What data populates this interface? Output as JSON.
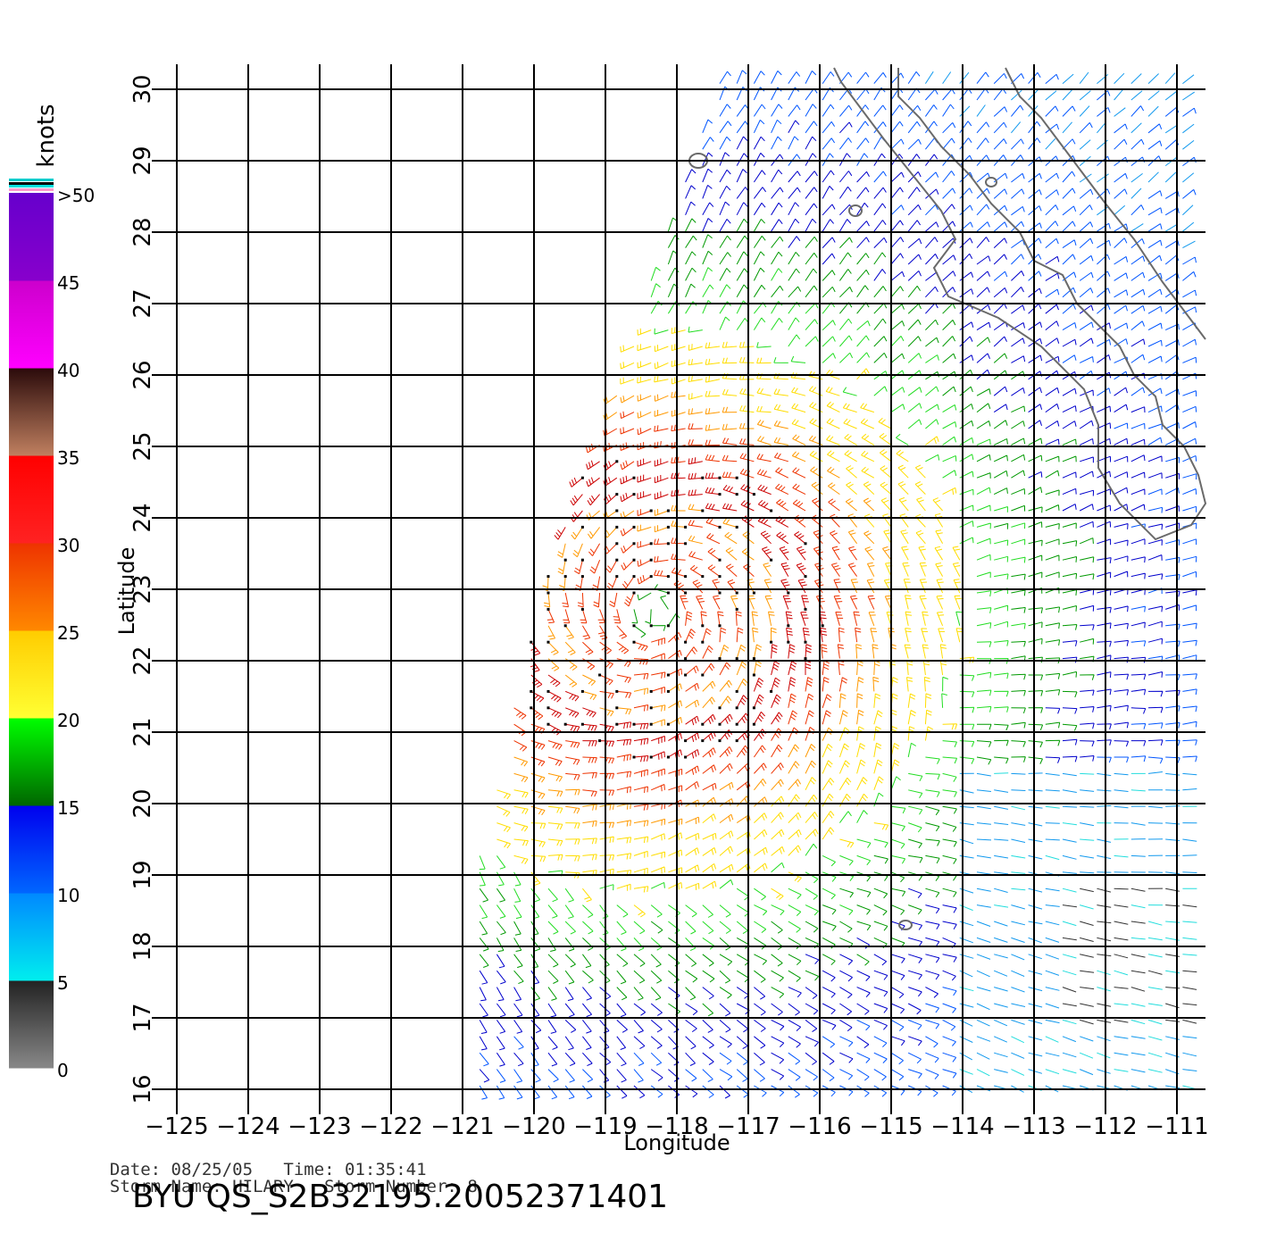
{
  "plot": {
    "ylabel": "Latitude",
    "xlabel": "Longitude",
    "lon_ticks": [
      "−125",
      "−124",
      "−123",
      "−122",
      "−121",
      "−120",
      "−119",
      "−118",
      "−117",
      "−116",
      "−115",
      "−114",
      "−113",
      "−112",
      "−111"
    ],
    "lat_ticks": [
      "16",
      "17",
      "18",
      "19",
      "20",
      "21",
      "22",
      "23",
      "24",
      "25",
      "26",
      "27",
      "28",
      "29",
      "30"
    ],
    "lon_range": [
      -125,
      -110.6
    ],
    "lat_range": [
      16,
      30
    ]
  },
  "colorbar": {
    "unit": "knots",
    "labels": [
      "0",
      "5",
      "10",
      "15",
      "20",
      "25",
      "30",
      "35",
      "40",
      "45",
      ">50"
    ],
    "colors": {
      "0-5": [
        "#888888",
        "#222222"
      ],
      "5-10": [
        "#00eeee",
        "#0088ff"
      ],
      "10-15": [
        "#0066ff",
        "#0000ee"
      ],
      "15-20": [
        "#006600",
        "#00ff00"
      ],
      "20-25": [
        "#ffff33",
        "#ffcc00"
      ],
      "25-30": [
        "#ff8800",
        "#ee3300"
      ],
      "30-35": [
        "#ff2222",
        "#ff0000"
      ],
      "35-40": [
        "#c08060",
        "#2a0a0a"
      ],
      "40-45": [
        "#ff00ff",
        "#cc00cc"
      ],
      "45-50": [
        "#8800cc",
        "#6600cc"
      ]
    }
  },
  "storm": {
    "center_lon": -118.3,
    "center_lat": 22.7
  },
  "footer": {
    "date_label": "Date:",
    "date": "08/25/05",
    "time_label": "Time:",
    "time": "01:35:41",
    "storm_name_label": "Storm Name:",
    "storm_name": "HILARY",
    "storm_number_label": "Storm Number:",
    "storm_number": "8",
    "product": "BYU QS_S2B32195.20052371401"
  }
}
